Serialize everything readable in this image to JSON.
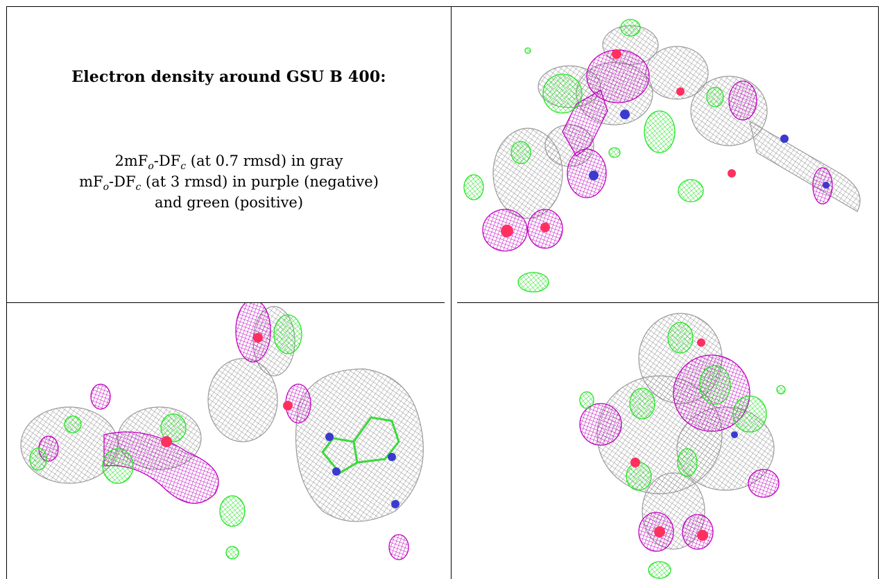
{
  "caption": {
    "title": "Electron density around GSU B 400:",
    "line1": {
      "pre": "2mF",
      "sub1": "o",
      "mid": "-DF",
      "sub2": "c",
      "post": " (at 0.7 rmsd) in gray"
    },
    "line2": {
      "pre": "mF",
      "sub1": "o",
      "mid": "-DF",
      "sub2": "c",
      "post": " (at 3 rmsd) in purple (negative)"
    },
    "line3": "and green (positive)"
  },
  "colors": {
    "gray_mesh": "#9a9a9a",
    "negative_purple": "#c000c0",
    "positive_green": "#22e622",
    "oxygen_red": "#ff3060",
    "nitrogen_blue": "#3a3ad0"
  }
}
